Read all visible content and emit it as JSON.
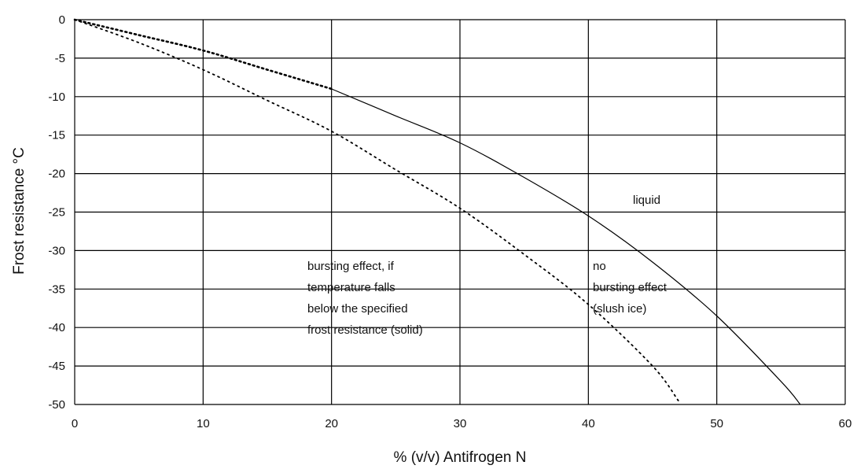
{
  "chart_data": {
    "type": "line",
    "title": "",
    "xlabel": "% (v/v) Antifrogen N",
    "ylabel": "Frost resistance °C",
    "xlim": [
      0,
      60
    ],
    "ylim": [
      -50,
      0
    ],
    "x_ticks": [
      "0",
      "10",
      "20",
      "30",
      "40",
      "50",
      "60"
    ],
    "y_ticks": [
      "0",
      "-5",
      "-10",
      "-15",
      "-20",
      "-25",
      "-30",
      "-35",
      "-40",
      "-45",
      "-50"
    ],
    "grid": true,
    "legend": "none",
    "series": [
      {
        "style": "solid-with-dotted-start",
        "x": [
          0,
          5,
          10,
          15,
          20,
          25,
          30,
          35,
          40,
          45,
          50,
          55,
          56.5
        ],
        "y": [
          0,
          -2,
          -4,
          -6.5,
          -9,
          -12.5,
          -16,
          -20.5,
          -25.5,
          -31.5,
          -38.5,
          -47,
          -50
        ]
      },
      {
        "style": "dotted",
        "x": [
          0,
          5,
          10,
          15,
          20,
          25,
          30,
          35,
          40,
          45,
          47
        ],
        "y": [
          0,
          -3,
          -6.5,
          -10.5,
          -14.5,
          -19.5,
          -24.5,
          -30.5,
          -37,
          -45,
          -49.5
        ]
      }
    ],
    "annotations": {
      "liquid": [
        "liquid"
      ],
      "no_bursting": [
        "no",
        "bursting effect",
        "(slush ice)"
      ],
      "bursting": [
        "bursting effect, if",
        "temperature falls",
        "below the specified",
        "frost resistance (solid)"
      ]
    }
  }
}
